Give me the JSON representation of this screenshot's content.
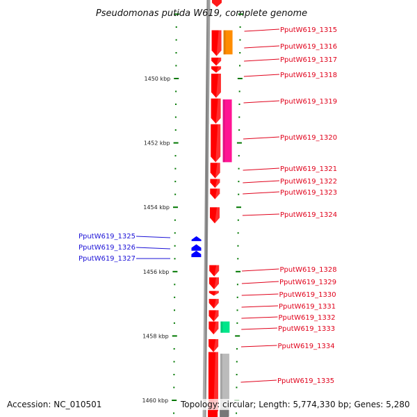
{
  "title": "Pseudomonas putida W619, complete genome",
  "accession_label": "Accession: NC_010501",
  "topology_label": "Topology: circular; Length: 5,774,330 bp; Genes: 5,280",
  "colors": {
    "forward_gene": "#ff0000",
    "reverse_gene": "#0000ff",
    "backbone": "#888888",
    "tick": "#007700",
    "label_forward": "#e0001a",
    "label_reverse": "#1a10d6",
    "feature_orange": "#ff8c00",
    "feature_pink": "#ff1493",
    "feature_green": "#00e68a",
    "feature_gray": "#bbbbbb"
  },
  "scale": {
    "major_ticks": [
      "1450 kbp",
      "1452 kbp",
      "1454 kbp",
      "1456 kbp",
      "1458 kbp",
      "1460 kbp"
    ],
    "start_kbp": 1448.1,
    "end_kbp": 1460.5
  },
  "forward_genes": [
    {
      "id": "PputW619_1315",
      "start_kbp": 1448.5,
      "end_kbp": 1449.3
    },
    {
      "id": "PputW619_1316",
      "start_kbp": 1449.35,
      "end_kbp": 1449.6
    },
    {
      "id": "PputW619_1317",
      "start_kbp": 1449.62,
      "end_kbp": 1449.82
    },
    {
      "id": "PputW619_1318",
      "start_kbp": 1449.85,
      "end_kbp": 1450.6
    },
    {
      "id": "PputW619_1319",
      "start_kbp": 1450.62,
      "end_kbp": 1451.4
    },
    {
      "id": "PputW619_1320",
      "start_kbp": 1451.42,
      "end_kbp": 1452.6
    },
    {
      "id": "PputW619_1321",
      "start_kbp": 1452.62,
      "end_kbp": 1453.1
    },
    {
      "id": "PputW619_1322",
      "start_kbp": 1453.12,
      "end_kbp": 1453.4
    },
    {
      "id": "PputW619_1323",
      "start_kbp": 1453.42,
      "end_kbp": 1453.75
    },
    {
      "id": "PputW619_1324",
      "start_kbp": 1454.0,
      "end_kbp": 1454.5
    },
    {
      "id": "PputW619_1328",
      "start_kbp": 1455.8,
      "end_kbp": 1456.15
    },
    {
      "id": "PputW619_1329",
      "start_kbp": 1456.18,
      "end_kbp": 1456.55
    },
    {
      "id": "PputW619_1330",
      "start_kbp": 1456.6,
      "end_kbp": 1456.75
    },
    {
      "id": "PputW619_1331",
      "start_kbp": 1456.85,
      "end_kbp": 1457.15
    },
    {
      "id": "PputW619_1332",
      "start_kbp": 1457.2,
      "end_kbp": 1457.55
    },
    {
      "id": "PputW619_1333",
      "start_kbp": 1457.55,
      "end_kbp": 1457.95
    },
    {
      "id": "PputW619_1334",
      "start_kbp": 1458.1,
      "end_kbp": 1458.5
    },
    {
      "id": "PputW619_1335",
      "start_kbp": 1458.5,
      "end_kbp": 1460.5
    }
  ],
  "reverse_genes": [
    {
      "id": "PputW619_1325",
      "start_kbp": 1454.9,
      "end_kbp": 1455.05
    },
    {
      "id": "PputW619_1326",
      "start_kbp": 1455.15,
      "end_kbp": 1455.35
    },
    {
      "id": "PputW619_1327",
      "start_kbp": 1455.35,
      "end_kbp": 1455.55
    }
  ],
  "features": [
    {
      "name": "orange-feature",
      "color": "#ff8c00",
      "start_kbp": 1448.5,
      "end_kbp": 1449.25
    },
    {
      "name": "pink-feature",
      "color": "#ff1493",
      "start_kbp": 1450.65,
      "end_kbp": 1452.6
    },
    {
      "name": "green-feature",
      "color": "#00e68a",
      "start_kbp": 1457.55,
      "end_kbp": 1457.9
    },
    {
      "name": "gray-feature",
      "color": "#bbbbbb",
      "start_kbp": 1458.55,
      "end_kbp": 1460.5
    }
  ]
}
